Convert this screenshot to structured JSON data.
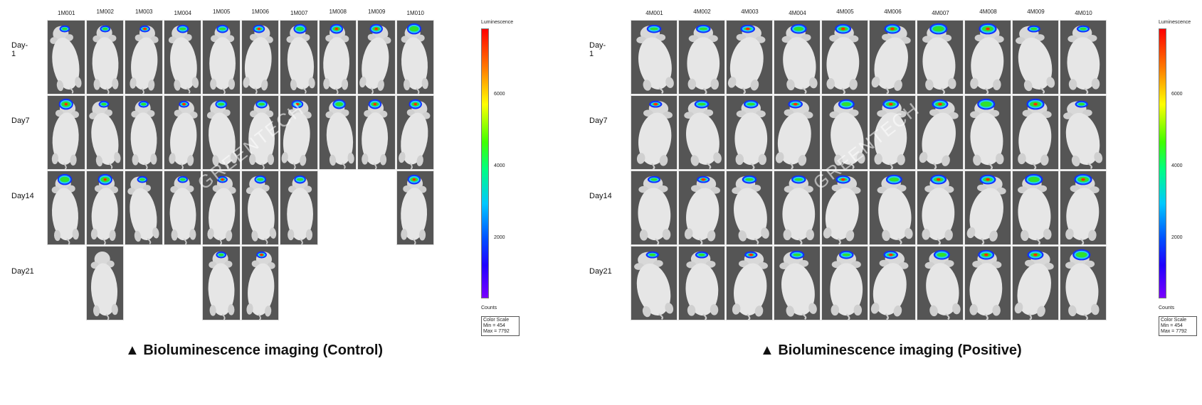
{
  "panels": [
    {
      "id": "control",
      "columns": [
        "1M001",
        "1M002",
        "1M003",
        "1M004",
        "1M005",
        "1M006",
        "1M007",
        "1M008",
        "1M009",
        "1M010"
      ],
      "rows": [
        "Day-1",
        "Day7",
        "Day14",
        "Day21"
      ],
      "present": [
        [
          1,
          1,
          1,
          1,
          1,
          1,
          1,
          1,
          1,
          1
        ],
        [
          1,
          1,
          1,
          1,
          1,
          1,
          1,
          1,
          1,
          1
        ],
        [
          1,
          1,
          1,
          1,
          1,
          1,
          1,
          0,
          0,
          1
        ],
        [
          0,
          1,
          0,
          0,
          1,
          1,
          0,
          0,
          0,
          0
        ]
      ],
      "scale": {
        "title": "Luminescence",
        "ticks": [
          "6000",
          "4000",
          "2000"
        ],
        "counts": "Counts",
        "box": [
          "Color Scale",
          "Min = 454",
          "Max = 7792"
        ]
      },
      "watermark": "GREENTECH",
      "caption": "▲ Bioluminescence imaging  (Control)"
    },
    {
      "id": "positive",
      "columns": [
        "4M001",
        "4M002",
        "4M003",
        "4M004",
        "4M005",
        "4M006",
        "4M007",
        "4M008",
        "4M009",
        "4M010"
      ],
      "rows": [
        "Day-1",
        "Day7",
        "Day14",
        "Day21"
      ],
      "present": [
        [
          1,
          1,
          1,
          1,
          1,
          1,
          1,
          1,
          1,
          1
        ],
        [
          1,
          1,
          1,
          1,
          1,
          1,
          1,
          1,
          1,
          1
        ],
        [
          1,
          1,
          1,
          1,
          1,
          1,
          1,
          1,
          1,
          1
        ],
        [
          1,
          1,
          1,
          1,
          1,
          1,
          1,
          1,
          1,
          1
        ]
      ],
      "scale": {
        "title": "Luminescence",
        "ticks": [
          "6000",
          "4000",
          "2000"
        ],
        "counts": "Counts",
        "box": [
          "Color Scale",
          "Min = 454",
          "Max = 7792"
        ]
      },
      "watermark": "GREENTECH",
      "caption": "▲ Bioluminescence imaging (Positive)"
    }
  ],
  "colors": {
    "mouse": "#e8e8e8",
    "background": "#5a5a5a",
    "signal_core": "#ff2000",
    "signal_mid": "#20e020",
    "signal_outer": "#1030ff"
  }
}
